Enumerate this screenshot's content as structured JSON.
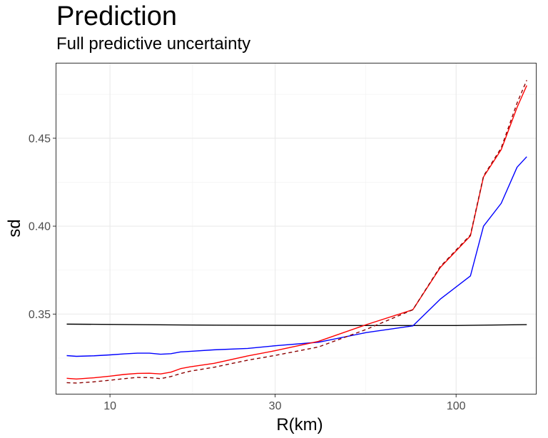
{
  "chart_data": {
    "type": "line",
    "title": "Prediction",
    "subtitle": "Full predictive uncertainty",
    "xlabel": "R(km)",
    "ylabel": "sd",
    "x_scale": "log10",
    "xlim": [
      7,
      170
    ],
    "ylim": [
      0.3047,
      0.4925
    ],
    "x_ticks": [
      10,
      30,
      100
    ],
    "y_ticks": [
      0.35,
      0.4,
      0.45
    ],
    "grid": true,
    "legend": "none",
    "series": [
      {
        "color": "#000000",
        "dash": "solid",
        "x": [
          7.5,
          20,
          50,
          100,
          160
        ],
        "y": [
          0.3443,
          0.3437,
          0.3435,
          0.3435,
          0.344
        ]
      },
      {
        "color": "#0000ff",
        "dash": "solid",
        "x": [
          7.5,
          8,
          9,
          10,
          11,
          12,
          13,
          14,
          15,
          16,
          17,
          20,
          25,
          30,
          40,
          55,
          75,
          90,
          110,
          120,
          135,
          150,
          160
        ],
        "y": [
          0.3264,
          0.326,
          0.3263,
          0.3268,
          0.3274,
          0.3278,
          0.3278,
          0.3272,
          0.3275,
          0.3285,
          0.3288,
          0.3297,
          0.3305,
          0.332,
          0.334,
          0.3395,
          0.3433,
          0.3585,
          0.3717,
          0.4,
          0.413,
          0.4335,
          0.4395
        ]
      },
      {
        "color": "#ff0000",
        "dash": "solid",
        "x": [
          7.5,
          8,
          9,
          10,
          11,
          12,
          13,
          14,
          15,
          16,
          17,
          20,
          25,
          30,
          40,
          55,
          75,
          90,
          110,
          120,
          135,
          150,
          160
        ],
        "y": [
          0.3135,
          0.3131,
          0.3138,
          0.3147,
          0.3157,
          0.3163,
          0.3164,
          0.316,
          0.317,
          0.319,
          0.32,
          0.322,
          0.3262,
          0.3292,
          0.3345,
          0.344,
          0.3525,
          0.3765,
          0.3945,
          0.428,
          0.4435,
          0.4675,
          0.48
        ]
      },
      {
        "color": "#8b0000",
        "dash": "dashed",
        "x": [
          7.5,
          8,
          9,
          10,
          11,
          12,
          13,
          14,
          15,
          16,
          17,
          20,
          25,
          30,
          40,
          55,
          75,
          90,
          110,
          120,
          135,
          150,
          160
        ],
        "y": [
          0.311,
          0.3108,
          0.3115,
          0.3124,
          0.3133,
          0.314,
          0.3139,
          0.3133,
          0.3145,
          0.3162,
          0.3175,
          0.3198,
          0.3238,
          0.3265,
          0.3313,
          0.3413,
          0.3525,
          0.377,
          0.395,
          0.4285,
          0.4445,
          0.47,
          0.483
        ]
      }
    ]
  }
}
